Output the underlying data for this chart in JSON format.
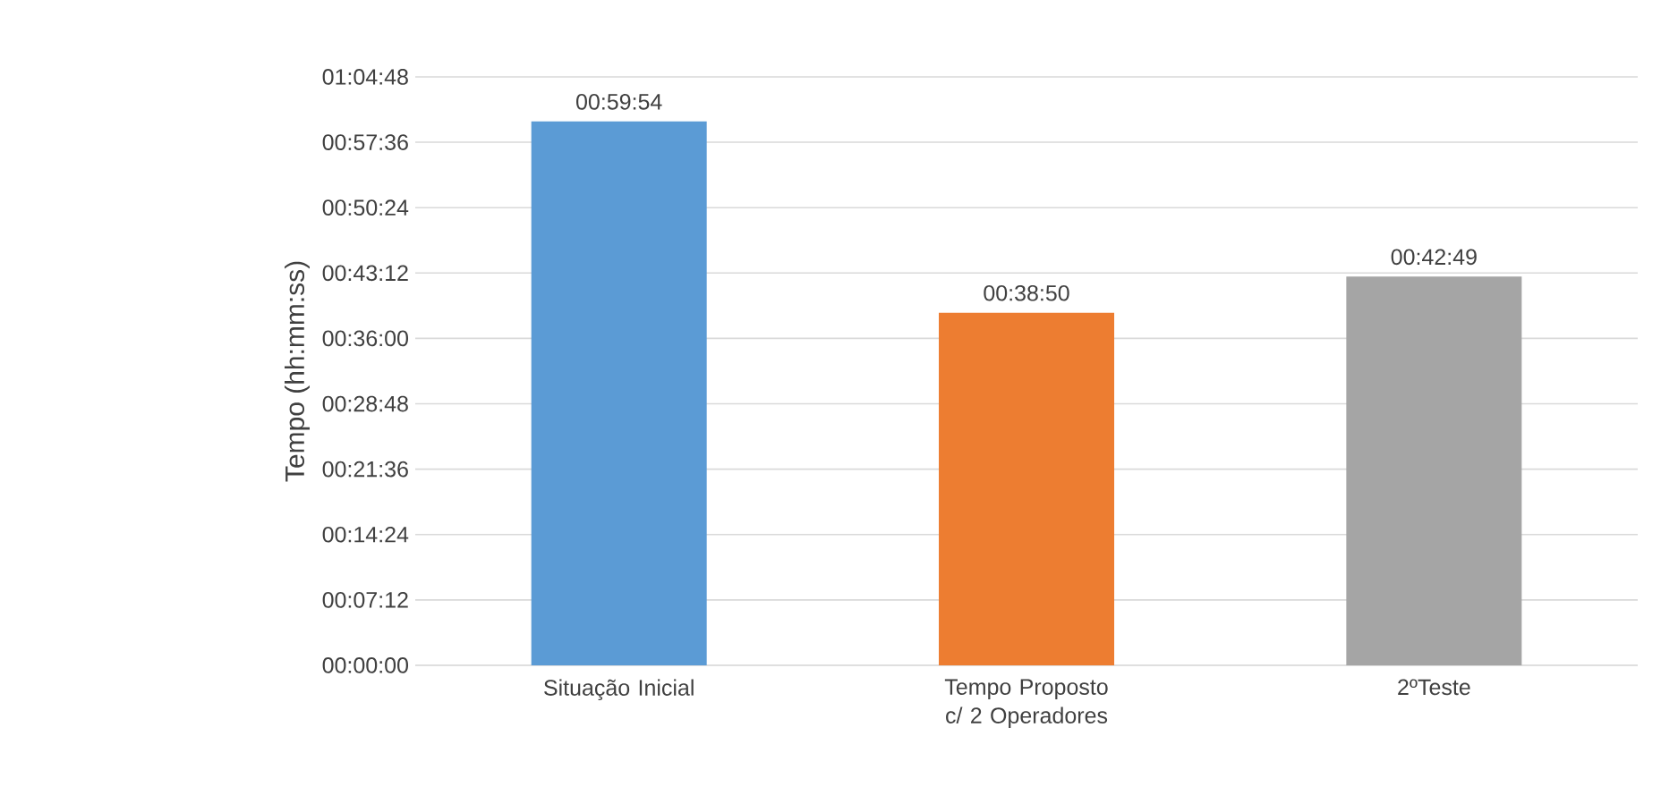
{
  "chart_data": {
    "type": "bar",
    "ylabel": "Tempo (hh:mm:ss)",
    "categories": [
      "Situação Inicial",
      "Tempo Proposto c/ 2 Operadores",
      "2ºTeste"
    ],
    "values": [
      3594,
      2330,
      2569
    ],
    "colors": [
      "#5b9bd5",
      "#ed7d31",
      "#a5a5a5"
    ],
    "value_labels": [
      "00:59:54",
      "00:38:50",
      "00:42:49"
    ],
    "ylim": [
      0,
      3888
    ],
    "yticks": [
      {
        "value": 0,
        "label": "00:00:00"
      },
      {
        "value": 432,
        "label": "00:07:12"
      },
      {
        "value": 864,
        "label": "00:14:24"
      },
      {
        "value": 1296,
        "label": "00:21:36"
      },
      {
        "value": 1728,
        "label": "00:28:48"
      },
      {
        "value": 2160,
        "label": "00:36:00"
      },
      {
        "value": 2592,
        "label": "00:43:12"
      },
      {
        "value": 3024,
        "label": "00:50:24"
      },
      {
        "value": 3456,
        "label": "00:57:36"
      },
      {
        "value": 3888,
        "label": "01:04:48"
      }
    ],
    "grid": "y"
  }
}
